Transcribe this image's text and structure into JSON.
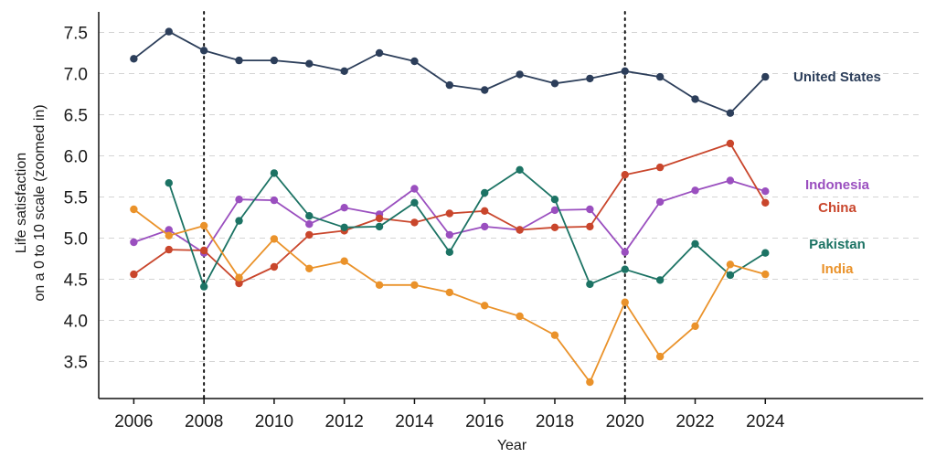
{
  "chart_data": {
    "type": "line",
    "title": "",
    "xlabel": "Year",
    "ylabel_line1": "Life satisfaction",
    "ylabel_line2": "on a 0 to 10 scale (zoomed in)",
    "xlim": [
      2005,
      2028.5
    ],
    "ylim": [
      3.05,
      7.75
    ],
    "x_ticks": [
      2006,
      2008,
      2010,
      2012,
      2014,
      2016,
      2018,
      2020,
      2022,
      2024
    ],
    "y_ticks": [
      3.5,
      4.0,
      4.5,
      5.0,
      5.5,
      6.0,
      6.5,
      7.0,
      7.5
    ],
    "x_tick_labels": [
      "2006",
      "2008",
      "2010",
      "2012",
      "2014",
      "2016",
      "2018",
      "2020",
      "2022",
      "2024"
    ],
    "y_tick_labels": [
      "3.5",
      "4.0",
      "4.5",
      "5.0",
      "5.5",
      "6.0",
      "6.5",
      "7.0",
      "7.5"
    ],
    "vertical_markers": [
      2008,
      2020
    ],
    "grid": "horizontal dashed",
    "legend": "inline labels at right end of lines",
    "series": [
      {
        "name": "United States",
        "color": "#2c3e5a",
        "points": [
          [
            2006,
            7.18
          ],
          [
            2007,
            7.51
          ],
          [
            2008,
            7.28
          ],
          [
            2009,
            7.16
          ],
          [
            2010,
            7.16
          ],
          [
            2011,
            7.12
          ],
          [
            2012,
            7.03
          ],
          [
            2013,
            7.25
          ],
          [
            2014,
            7.15
          ],
          [
            2015,
            6.86
          ],
          [
            2016,
            6.8
          ],
          [
            2017,
            6.99
          ],
          [
            2018,
            6.88
          ],
          [
            2019,
            6.94
          ],
          [
            2020,
            7.03
          ],
          [
            2021,
            6.96
          ],
          [
            2022,
            6.69
          ],
          [
            2023,
            6.52
          ],
          [
            2024,
            6.96
          ]
        ]
      },
      {
        "name": "Indonesia",
        "color": "#9a4fbf",
        "points": [
          [
            2006,
            4.95
          ],
          [
            2007,
            5.1
          ],
          [
            2008,
            4.82
          ],
          [
            2009,
            5.47
          ],
          [
            2010,
            5.46
          ],
          [
            2011,
            5.17
          ],
          [
            2012,
            5.37
          ],
          [
            2013,
            5.29
          ],
          [
            2014,
            5.6
          ],
          [
            2015,
            5.04
          ],
          [
            2016,
            5.14
          ],
          [
            2017,
            5.1
          ],
          [
            2018,
            5.34
          ],
          [
            2019,
            5.35
          ],
          [
            2020,
            4.83
          ],
          [
            2021,
            5.44
          ],
          [
            2022,
            5.58
          ],
          [
            2023,
            5.7
          ],
          [
            2024,
            5.57
          ]
        ]
      },
      {
        "name": "China",
        "color": "#c9462c",
        "points": [
          [
            2006,
            4.56
          ],
          [
            2007,
            4.86
          ],
          [
            2008,
            4.85
          ],
          [
            2009,
            4.45
          ],
          [
            2010,
            4.65
          ],
          [
            2011,
            5.04
          ],
          [
            2012,
            5.09
          ],
          [
            2013,
            5.24
          ],
          [
            2014,
            5.19
          ],
          [
            2015,
            5.3
          ],
          [
            2016,
            5.33
          ],
          [
            2017,
            5.1
          ],
          [
            2018,
            5.13
          ],
          [
            2019,
            5.14
          ],
          [
            2020,
            5.77
          ],
          [
            2021,
            5.86
          ],
          [
            2023,
            6.15
          ],
          [
            2024,
            5.43
          ]
        ]
      },
      {
        "name": "Pakistan",
        "color": "#1c7364",
        "points": [
          [
            2007,
            5.67
          ],
          [
            2008,
            4.41
          ],
          [
            2009,
            5.21
          ],
          [
            2010,
            5.79
          ],
          [
            2011,
            5.27
          ],
          [
            2012,
            5.13
          ],
          [
            2013,
            5.14
          ],
          [
            2014,
            5.43
          ],
          [
            2015,
            4.83
          ],
          [
            2016,
            5.55
          ],
          [
            2017,
            5.83
          ],
          [
            2018,
            5.47
          ],
          [
            2019,
            4.44
          ],
          [
            2020,
            4.62
          ],
          [
            2021,
            4.49
          ],
          [
            2022,
            4.93
          ],
          [
            2023,
            4.55
          ],
          [
            2024,
            4.82
          ]
        ]
      },
      {
        "name": "India",
        "color": "#ea922a",
        "points": [
          [
            2006,
            5.35
          ],
          [
            2007,
            5.03
          ],
          [
            2008,
            5.15
          ],
          [
            2009,
            4.52
          ],
          [
            2010,
            4.99
          ],
          [
            2011,
            4.63
          ],
          [
            2012,
            4.72
          ],
          [
            2013,
            4.43
          ],
          [
            2014,
            4.43
          ],
          [
            2015,
            4.34
          ],
          [
            2016,
            4.18
          ],
          [
            2017,
            4.05
          ],
          [
            2018,
            3.82
          ],
          [
            2019,
            3.25
          ],
          [
            2020,
            4.22
          ],
          [
            2021,
            3.56
          ],
          [
            2022,
            3.93
          ],
          [
            2023,
            4.68
          ],
          [
            2024,
            4.56
          ]
        ]
      }
    ],
    "series_labels": [
      {
        "name": "United States",
        "color": "#2c3e5a",
        "y": 6.96
      },
      {
        "name": "Indonesia",
        "color": "#9a4fbf",
        "y": 5.65
      },
      {
        "name": "China",
        "color": "#c9462c",
        "y": 5.37
      },
      {
        "name": "Pakistan",
        "color": "#1c7364",
        "y": 4.93
      },
      {
        "name": "India",
        "color": "#ea922a",
        "y": 4.63
      }
    ]
  }
}
